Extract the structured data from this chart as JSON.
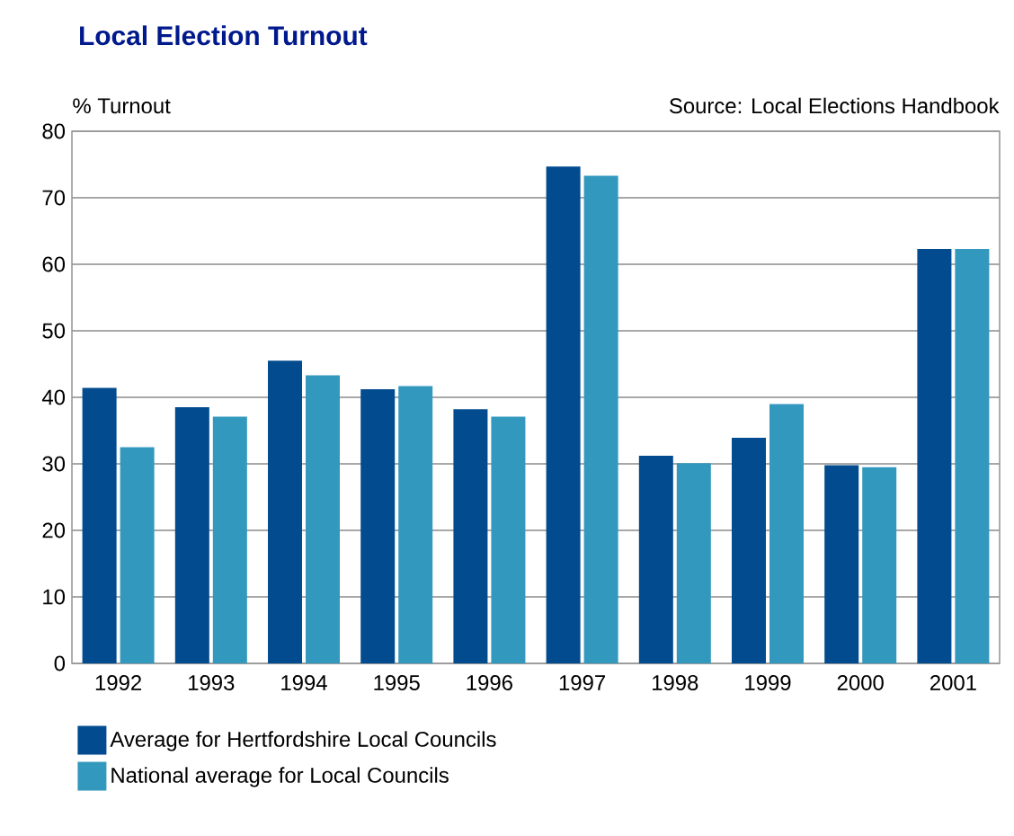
{
  "chart_data": {
    "type": "bar",
    "title": "Local Election Turnout",
    "ylabel": "% Turnout",
    "annotations": [
      "Source: Local Elections Handbook"
    ],
    "categories": [
      "1992",
      "1993",
      "1994",
      "1995",
      "1996",
      "1997",
      "1998",
      "1999",
      "2000",
      "2001"
    ],
    "series": [
      {
        "name": "Average for Hertfordshire Local Councils",
        "color": "#024b8f",
        "values": [
          41.4,
          38.5,
          45.5,
          41.2,
          38.2,
          74.7,
          31.2,
          33.9,
          29.8,
          62.3
        ]
      },
      {
        "name": "National average for Local Councils",
        "color": "#3398bd",
        "values": [
          32.5,
          37.1,
          43.3,
          41.7,
          37.1,
          73.3,
          30.1,
          39.0,
          29.5,
          62.3
        ]
      }
    ],
    "ylim": [
      0,
      80
    ],
    "yticks": [
      0,
      10,
      20,
      30,
      40,
      50,
      60,
      70,
      80
    ],
    "grid": "y",
    "legend": "bottom left"
  }
}
